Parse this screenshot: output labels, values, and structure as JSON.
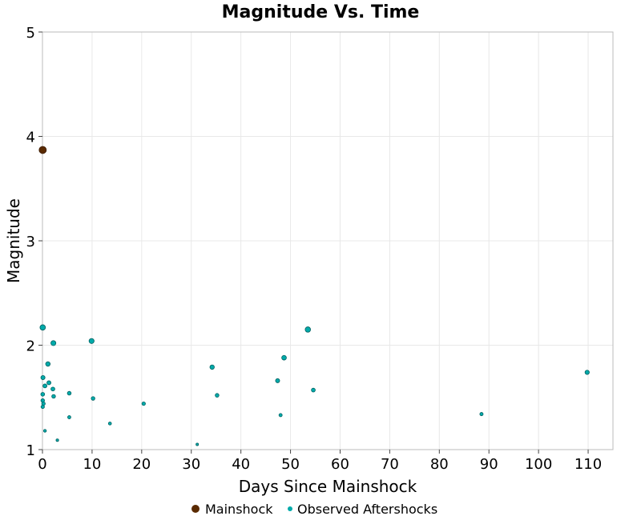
{
  "chart_data": {
    "type": "scatter",
    "title": "Magnitude Vs. Time",
    "xlabel": "Days Since Mainshock",
    "ylabel": "Magnitude",
    "xlim": [
      0,
      115
    ],
    "ylim": [
      1,
      5
    ],
    "xticks": [
      0,
      10,
      20,
      30,
      40,
      50,
      60,
      70,
      80,
      90,
      100,
      110
    ],
    "yticks": [
      1,
      2,
      3,
      4,
      5
    ],
    "grid": true,
    "legend_placement": "bottom",
    "series": [
      {
        "name": "Mainshock",
        "color": "#5a2a00",
        "points": [
          [
            0.05,
            3.87
          ]
        ]
      },
      {
        "name": "Observed Aftershocks",
        "color": "#00aaaa",
        "points": [
          [
            0.05,
            2.17
          ],
          [
            2.2,
            2.02
          ],
          [
            1.1,
            1.82
          ],
          [
            0.1,
            1.69
          ],
          [
            0.5,
            1.61
          ],
          [
            1.3,
            1.64
          ],
          [
            2.1,
            1.58
          ],
          [
            2.25,
            1.51
          ],
          [
            0.05,
            1.53
          ],
          [
            0.05,
            1.47
          ],
          [
            0.2,
            1.44
          ],
          [
            0.05,
            1.41
          ],
          [
            0.5,
            1.18
          ],
          [
            3.0,
            1.09
          ],
          [
            5.4,
            1.54
          ],
          [
            5.4,
            1.31
          ],
          [
            9.9,
            2.04
          ],
          [
            10.2,
            1.49
          ],
          [
            13.6,
            1.25
          ],
          [
            20.4,
            1.44
          ],
          [
            31.2,
            1.05
          ],
          [
            34.2,
            1.79
          ],
          [
            35.2,
            1.52
          ],
          [
            47.4,
            1.66
          ],
          [
            48.0,
            1.33
          ],
          [
            48.7,
            1.88
          ],
          [
            53.5,
            2.15
          ],
          [
            54.6,
            1.57
          ],
          [
            88.5,
            1.34
          ],
          [
            109.8,
            1.74
          ]
        ]
      }
    ]
  }
}
